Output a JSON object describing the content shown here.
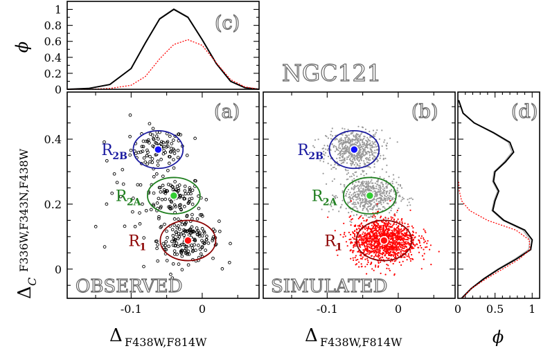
{
  "figure_title": "NGC121",
  "chart_data": [
    {
      "panel": "(a)",
      "type": "scatter",
      "xlabel": "Δ",
      "xlabel_sub": "F438W,F814W",
      "ylabel": "Δ",
      "ylabel_sub_c": "C",
      "ylabel_sub": "F336W,F343N,F438W",
      "xlim": [
        -0.19,
        0.08
      ],
      "ylim": [
        -0.09,
        0.545
      ],
      "xticks": [
        "-0.1",
        "0"
      ],
      "yticks": [
        "0",
        "0.2",
        "0.4"
      ],
      "corner_label": "OBSERVED",
      "populations": [
        {
          "name": "R",
          "sub": "2B",
          "color": "#1a1aa0",
          "center": [
            -0.062,
            0.368
          ],
          "ellipse_radii": [
            0.035,
            0.058
          ]
        },
        {
          "name": "R",
          "sub": "2A",
          "color": "#1f7f1f",
          "center": [
            -0.04,
            0.226
          ],
          "ellipse_radii": [
            0.037,
            0.056
          ]
        },
        {
          "name": "R",
          "sub": "1",
          "color": "#8b0000",
          "center": [
            -0.02,
            0.088
          ],
          "ellipse_radii": [
            0.039,
            0.062
          ]
        }
      ]
    },
    {
      "panel": "(b)",
      "type": "scatter",
      "xlabel": "Δ",
      "xlabel_sub": "F438W,F814W",
      "xlim": [
        -0.19,
        0.08
      ],
      "ylim": [
        -0.09,
        0.545
      ],
      "xticks": [
        "-0.1",
        "0"
      ],
      "corner_label": "SIMULATED",
      "populations": [
        {
          "name": "R",
          "sub": "2B",
          "color": "#1a1aa0",
          "center": [
            -0.062,
            0.368
          ],
          "ellipse_radii": [
            0.035,
            0.058
          ]
        },
        {
          "name": "R",
          "sub": "2A",
          "color": "#1f7f1f",
          "center": [
            -0.04,
            0.226
          ],
          "ellipse_radii": [
            0.037,
            0.056
          ]
        },
        {
          "name": "R",
          "sub": "1",
          "color": "#8b0000",
          "center": [
            -0.02,
            0.088
          ],
          "ellipse_radii": [
            0.039,
            0.062
          ]
        }
      ]
    },
    {
      "panel": "(c)",
      "type": "line",
      "ylabel": "ϕ",
      "xlim": [
        -0.19,
        0.08
      ],
      "ylim": [
        0,
        1.1
      ],
      "yticks": [
        "0",
        "0.2",
        "0.4",
        "0.6",
        "0.8",
        "1"
      ],
      "series": [
        {
          "style": "solid-black",
          "x": [
            -0.19,
            -0.16,
            -0.13,
            -0.1,
            -0.08,
            -0.06,
            -0.04,
            -0.02,
            0.0,
            0.02,
            0.04,
            0.06,
            0.08
          ],
          "y": [
            0.0,
            0.01,
            0.06,
            0.26,
            0.58,
            0.88,
            1.0,
            0.9,
            0.62,
            0.32,
            0.1,
            0.02,
            0.0
          ]
        },
        {
          "style": "dotted-red",
          "x": [
            -0.19,
            -0.16,
            -0.13,
            -0.1,
            -0.08,
            -0.06,
            -0.04,
            -0.02,
            0.0,
            0.02,
            0.04,
            0.06,
            0.08
          ],
          "y": [
            0.0,
            0.0,
            0.01,
            0.05,
            0.16,
            0.38,
            0.56,
            0.62,
            0.55,
            0.33,
            0.12,
            0.03,
            0.0
          ]
        }
      ]
    },
    {
      "panel": "(d)",
      "type": "line",
      "orientation": "horizontal",
      "xlabel": "ϕ",
      "xlim": [
        0,
        1.1
      ],
      "xticks": [
        "0",
        "0.5",
        "1"
      ],
      "series": [
        {
          "style": "solid-black",
          "y": [
            -0.09,
            -0.06,
            -0.03,
            0.0,
            0.03,
            0.06,
            0.09,
            0.12,
            0.15,
            0.18,
            0.21,
            0.24,
            0.27,
            0.3,
            0.33,
            0.36,
            0.39,
            0.42,
            0.45,
            0.48,
            0.52
          ],
          "phi": [
            0.05,
            0.18,
            0.35,
            0.55,
            0.78,
            0.98,
            1.0,
            0.9,
            0.62,
            0.47,
            0.5,
            0.55,
            0.48,
            0.5,
            0.64,
            0.75,
            0.7,
            0.48,
            0.22,
            0.07,
            0.01
          ]
        },
        {
          "style": "dotted-red",
          "y": [
            -0.09,
            -0.06,
            -0.03,
            0.0,
            0.03,
            0.06,
            0.09,
            0.12,
            0.15,
            0.18,
            0.21,
            0.24,
            0.27
          ],
          "phi": [
            0.06,
            0.18,
            0.38,
            0.6,
            0.82,
            0.97,
            0.96,
            0.78,
            0.4,
            0.16,
            0.05,
            0.02,
            0.01
          ]
        }
      ]
    }
  ],
  "colors": {
    "observed_points": "#000000",
    "simulated_gray": "#999999",
    "simulated_red": "#ff0000",
    "r2b_marker": "#1010ff",
    "r2a_marker": "#33cc33",
    "r1_marker": "#ff1010"
  }
}
